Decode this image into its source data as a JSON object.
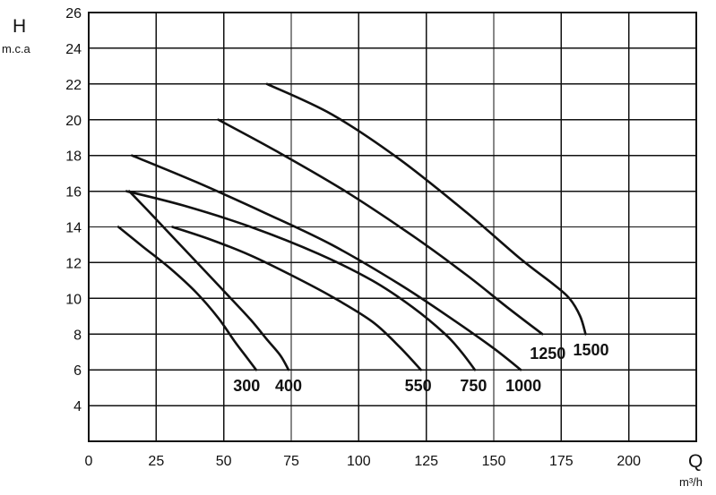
{
  "chart_data": {
    "type": "line",
    "ylabel_symbol": "H",
    "ylabel_unit": "m.c.a",
    "xlabel_symbol": "Q",
    "xlabel_unit": "m³/h",
    "xlim": [
      0,
      225
    ],
    "ylim": [
      2,
      26
    ],
    "x_ticks": [
      0,
      25,
      50,
      75,
      100,
      125,
      150,
      175,
      200
    ],
    "y_ticks": [
      4,
      6,
      8,
      10,
      12,
      14,
      16,
      18,
      20,
      22,
      24,
      26
    ],
    "grid": true,
    "line_color": "#111111",
    "series": [
      {
        "name": "300",
        "points": [
          [
            11,
            14
          ],
          [
            20,
            12.9
          ],
          [
            30,
            11.7
          ],
          [
            40,
            10.3
          ],
          [
            48,
            8.9
          ],
          [
            54,
            7.6
          ],
          [
            58,
            6.8
          ],
          [
            62,
            6
          ]
        ]
      },
      {
        "name": "400",
        "points": [
          [
            15,
            16
          ],
          [
            22,
            14.9
          ],
          [
            32,
            13.3
          ],
          [
            42,
            11.7
          ],
          [
            52,
            10.1
          ],
          [
            60,
            8.8
          ],
          [
            66,
            7.7
          ],
          [
            71,
            6.8
          ],
          [
            74,
            6
          ]
        ]
      },
      {
        "name": "550",
        "points": [
          [
            31,
            14
          ],
          [
            45,
            13.3
          ],
          [
            60,
            12.4
          ],
          [
            75,
            11.3
          ],
          [
            90,
            10.1
          ],
          [
            105,
            8.7
          ],
          [
            115,
            7.3
          ],
          [
            123,
            6
          ]
        ]
      },
      {
        "name": "750",
        "points": [
          [
            14,
            16
          ],
          [
            35,
            15.2
          ],
          [
            60,
            14
          ],
          [
            85,
            12.5
          ],
          [
            105,
            11
          ],
          [
            120,
            9.5
          ],
          [
            132,
            8
          ],
          [
            138,
            7
          ],
          [
            143,
            6
          ]
        ]
      },
      {
        "name": "1000",
        "points": [
          [
            16,
            18
          ],
          [
            40,
            16.5
          ],
          [
            65,
            14.8
          ],
          [
            90,
            13
          ],
          [
            115,
            10.8
          ],
          [
            135,
            8.8
          ],
          [
            150,
            7.2
          ],
          [
            160,
            6
          ]
        ]
      },
      {
        "name": "1250",
        "points": [
          [
            48,
            20
          ],
          [
            70,
            18.2
          ],
          [
            95,
            16
          ],
          [
            120,
            13.5
          ],
          [
            140,
            11.3
          ],
          [
            155,
            9.5
          ],
          [
            168,
            8
          ]
        ]
      },
      {
        "name": "1500",
        "points": [
          [
            66,
            22
          ],
          [
            90,
            20.3
          ],
          [
            115,
            17.8
          ],
          [
            140,
            14.8
          ],
          [
            160,
            12.2
          ],
          [
            172,
            10.8
          ],
          [
            178,
            10
          ],
          [
            182,
            9
          ],
          [
            184,
            8
          ]
        ]
      }
    ],
    "labels": [
      {
        "text": "300",
        "x": 58.5,
        "y": 5.1
      },
      {
        "text": "400",
        "x": 74,
        "y": 5.1
      },
      {
        "text": "550",
        "x": 122,
        "y": 5.1
      },
      {
        "text": "750",
        "x": 142.5,
        "y": 5.1
      },
      {
        "text": "1000",
        "x": 161,
        "y": 5.1
      },
      {
        "text": "1250",
        "x": 170,
        "y": 6.9
      },
      {
        "text": "1500",
        "x": 186,
        "y": 7.1
      }
    ]
  }
}
